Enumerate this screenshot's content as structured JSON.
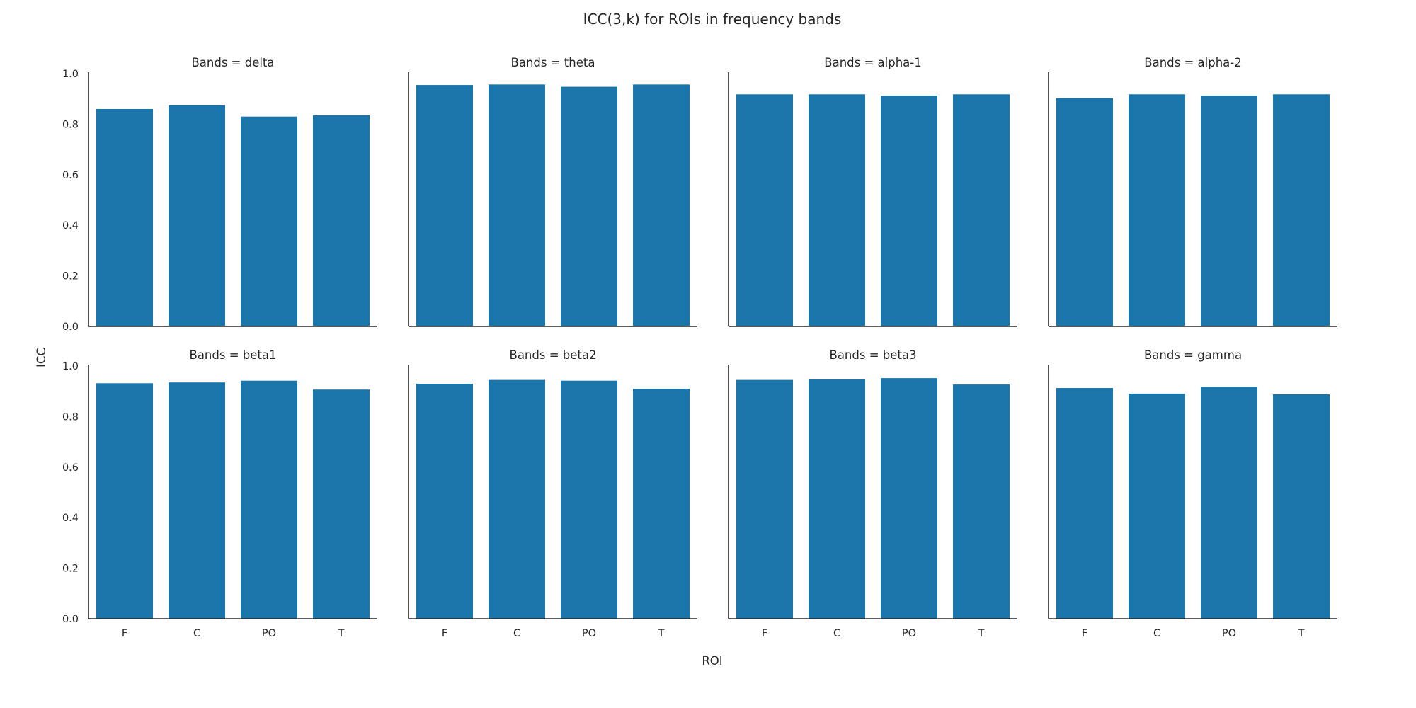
{
  "chart_data": {
    "type": "bar",
    "title": "ICC(3,k) for ROIs in frequency bands",
    "xlabel": "ROI",
    "ylabel": "ICC",
    "categories": [
      "F",
      "C",
      "PO",
      "T"
    ],
    "ylim": [
      0,
      1.0
    ],
    "yticks": [
      "0.0",
      "0.2",
      "0.4",
      "0.6",
      "0.8",
      "1.0"
    ],
    "grid": false,
    "bar_color": "#1a76aa",
    "layout": "2 rows x 4 columns facet grid",
    "panels": [
      {
        "title": "Bands = delta",
        "values": [
          0.86,
          0.875,
          0.83,
          0.835
        ]
      },
      {
        "title": "Bands = theta",
        "values": [
          0.955,
          0.957,
          0.948,
          0.957
        ]
      },
      {
        "title": "Bands = alpha-1",
        "values": [
          0.918,
          0.918,
          0.913,
          0.918
        ]
      },
      {
        "title": "Bands = alpha-2",
        "values": [
          0.903,
          0.918,
          0.913,
          0.918
        ]
      },
      {
        "title": "Bands = beta1",
        "values": [
          0.932,
          0.935,
          0.942,
          0.907
        ]
      },
      {
        "title": "Bands = beta2",
        "values": [
          0.93,
          0.945,
          0.942,
          0.91
        ]
      },
      {
        "title": "Bands = beta3",
        "values": [
          0.945,
          0.947,
          0.952,
          0.927
        ]
      },
      {
        "title": "Bands = gamma",
        "values": [
          0.913,
          0.891,
          0.918,
          0.888
        ]
      }
    ]
  }
}
